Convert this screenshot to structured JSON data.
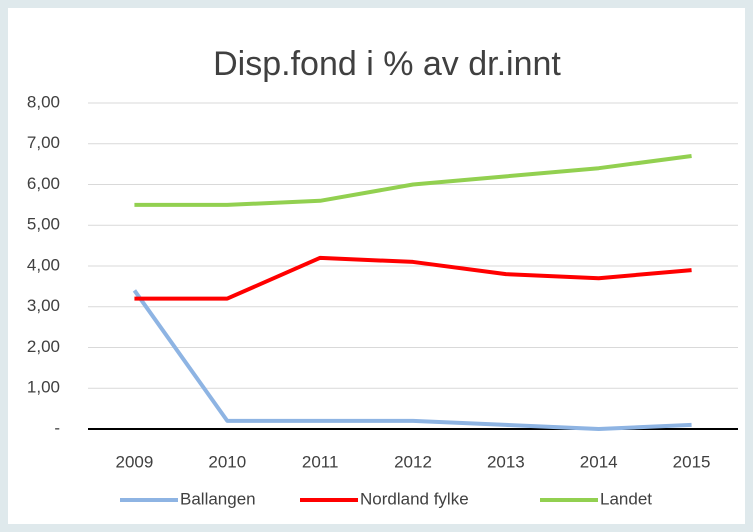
{
  "chart_data": {
    "type": "line",
    "title": "Disp.fond i % av dr.innt",
    "categories": [
      "2009",
      "2010",
      "2011",
      "2012",
      "2013",
      "2014",
      "2015"
    ],
    "series": [
      {
        "name": "Ballangen",
        "color": "#8eb4e3",
        "values": [
          3.4,
          0.2,
          0.2,
          0.2,
          0.1,
          0.0,
          0.1
        ]
      },
      {
        "name": "Nordland fylke",
        "color": "#ff0000",
        "values": [
          3.2,
          3.2,
          4.2,
          4.1,
          3.8,
          3.7,
          3.9
        ]
      },
      {
        "name": "Landet",
        "color": "#92d050",
        "values": [
          5.5,
          5.5,
          5.6,
          6.0,
          6.2,
          6.4,
          6.7
        ]
      }
    ],
    "ylim": [
      0,
      8
    ],
    "yticks": [
      {
        "value": 0,
        "label": "-"
      },
      {
        "value": 1,
        "label": "1,00"
      },
      {
        "value": 2,
        "label": "2,00"
      },
      {
        "value": 3,
        "label": "3,00"
      },
      {
        "value": 4,
        "label": "4,00"
      },
      {
        "value": 5,
        "label": "5,00"
      },
      {
        "value": 6,
        "label": "6,00"
      },
      {
        "value": 7,
        "label": "7,00"
      },
      {
        "value": 8,
        "label": "8,00"
      }
    ],
    "grid": true,
    "legend": "bottom"
  }
}
